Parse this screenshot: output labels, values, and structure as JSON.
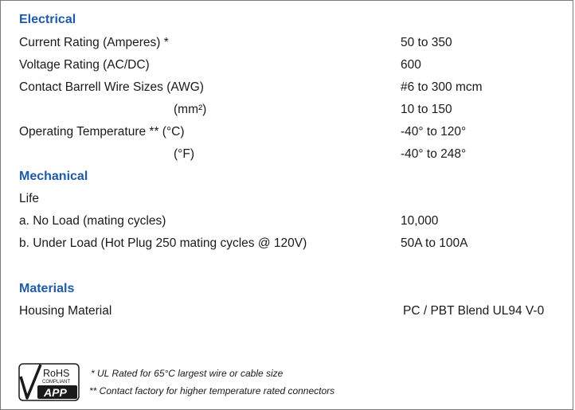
{
  "sections": {
    "electrical": {
      "heading": "Electrical",
      "rows": [
        {
          "label": "Current Rating (Amperes) *",
          "value": "50 to 350"
        },
        {
          "label": "Voltage Rating (AC/DC)",
          "value": "600"
        },
        {
          "label": "Contact Barrell Wire Sizes (AWG)",
          "value": "#6 to 300 mcm"
        },
        {
          "label": "(mm²)",
          "value": "10 to 150"
        },
        {
          "label": "Operating Temperature ** (°C)",
          "value": "-40° to 120°"
        },
        {
          "label": "(°F)",
          "value": "-40° to 248°"
        }
      ]
    },
    "mechanical": {
      "heading": "Mechanical",
      "life_label": "Life",
      "rows": [
        {
          "label": "a. No Load (mating cycles)",
          "value": "10,000"
        },
        {
          "label": "b. Under Load (Hot Plug 250 mating cycles @ 120V)",
          "value": "50A to 100A"
        }
      ]
    },
    "materials": {
      "heading": "Materials",
      "rows": [
        {
          "label": "Housing Material",
          "value": "PC / PBT Blend UL94 V-0"
        }
      ]
    }
  },
  "logo": {
    "line1": "RoHS",
    "line2": "COMPLIANT",
    "line3": "APP"
  },
  "footnotes": [
    "*   UL Rated for 65°C largest wire or cable size",
    "** Contact factory for higher temperature rated connectors"
  ]
}
